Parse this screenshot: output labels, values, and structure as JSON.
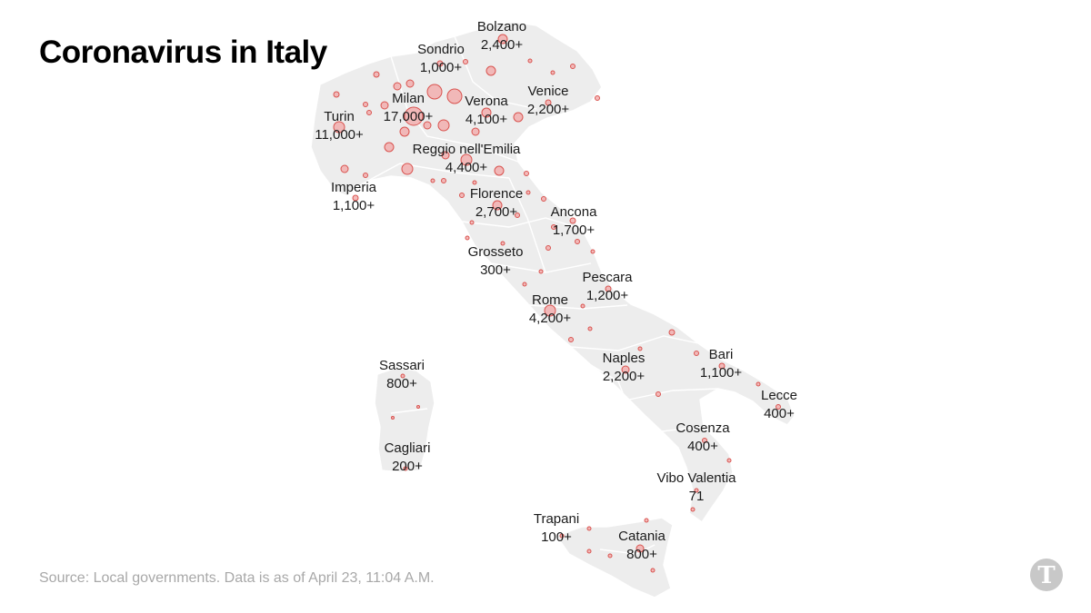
{
  "title": "Coronavirus in Italy",
  "source": "Source: Local governments. Data is as of April 23, 11:04 A.M.",
  "colors": {
    "land": "#ededed",
    "border": "#ffffff",
    "bubble_fill": "#f2a6a6",
    "bubble_stroke": "#d9534f",
    "text": "#1a1a1a",
    "source": "#a8a8a8"
  },
  "logo": {
    "icon": "nyt-logo-icon"
  },
  "cities": [
    {
      "name": "Bolzano",
      "cases": "2,400+"
    },
    {
      "name": "Sondrio",
      "cases": "1,000+"
    },
    {
      "name": "Venice",
      "cases": "2,200+"
    },
    {
      "name": "Milan",
      "cases": "17,000+"
    },
    {
      "name": "Verona",
      "cases": "4,100+"
    },
    {
      "name": "Turin",
      "cases": "11,000+"
    },
    {
      "name": "Reggio nell'Emilia",
      "cases": "4,400+"
    },
    {
      "name": "Imperia",
      "cases": "1,100+"
    },
    {
      "name": "Florence",
      "cases": "2,700+"
    },
    {
      "name": "Ancona",
      "cases": "1,700+"
    },
    {
      "name": "Grosseto",
      "cases": "300+"
    },
    {
      "name": "Pescara",
      "cases": "1,200+"
    },
    {
      "name": "Rome",
      "cases": "4,200+"
    },
    {
      "name": "Naples",
      "cases": "2,200+"
    },
    {
      "name": "Bari",
      "cases": "1,100+"
    },
    {
      "name": "Lecce",
      "cases": "400+"
    },
    {
      "name": "Sassari",
      "cases": "800+"
    },
    {
      "name": "Cagliari",
      "cases": "200+"
    },
    {
      "name": "Cosenza",
      "cases": "400+"
    },
    {
      "name": "Vibo Valentia",
      "cases": "71"
    },
    {
      "name": "Trapani",
      "cases": "100+"
    },
    {
      "name": "Catania",
      "cases": "800+"
    }
  ]
}
